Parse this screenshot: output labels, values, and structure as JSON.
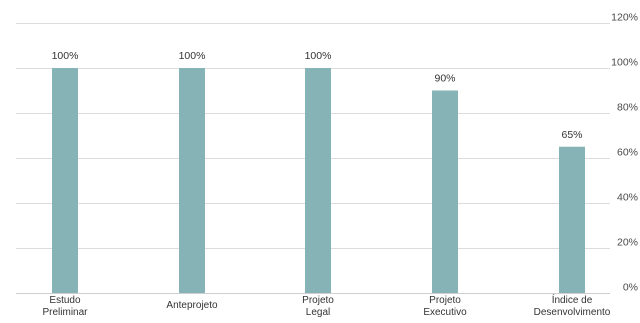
{
  "colors": {
    "bar": "#86b3b5",
    "grid": "#dcdcdc"
  },
  "chart_data": {
    "type": "bar",
    "categories": [
      [
        "Estudo",
        "Preliminar"
      ],
      [
        "Anteprojeto"
      ],
      [
        "Projeto",
        "Legal"
      ],
      [
        "Projeto",
        "Executivo"
      ],
      [
        "Índice de",
        "Desenvolvimento"
      ]
    ],
    "values": [
      100,
      100,
      100,
      90,
      65
    ],
    "value_labels": [
      "100%",
      "100%",
      "100%",
      "90%",
      "65%"
    ],
    "y_ticks": [
      0,
      20,
      40,
      60,
      80,
      100,
      120
    ],
    "y_tick_labels": [
      "0%",
      "20%",
      "40%",
      "60%",
      "80%",
      "100%",
      "120%"
    ],
    "ylim": [
      0,
      120
    ],
    "y_axis_side": "right",
    "grid": true,
    "legend": "none",
    "title": "",
    "xlabel": "",
    "ylabel": ""
  }
}
